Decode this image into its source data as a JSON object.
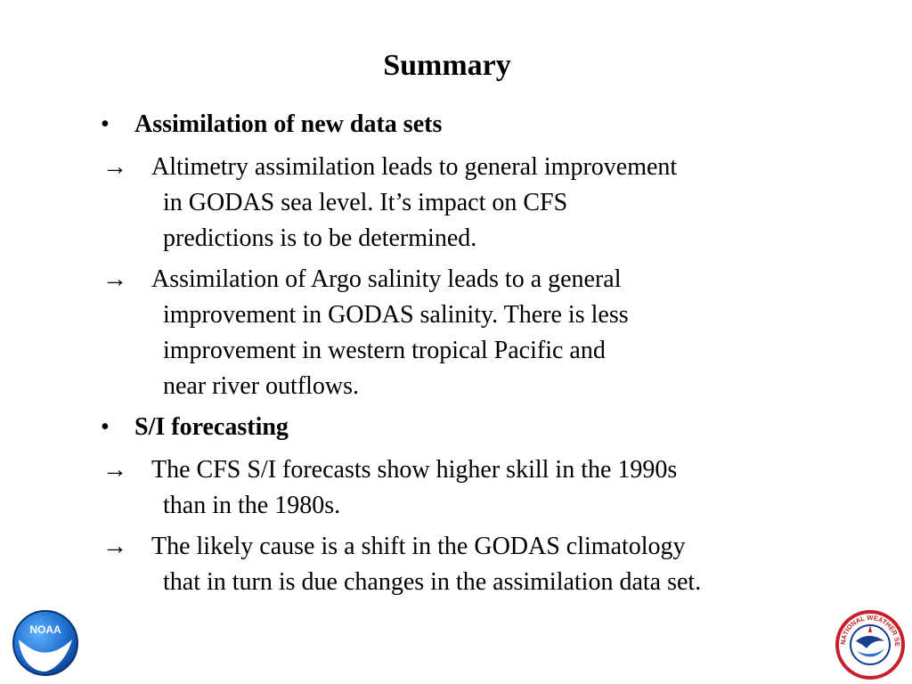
{
  "slide": {
    "title": "Summary"
  },
  "sections": [
    {
      "bullet": "•",
      "heading": "Assimilation of new data sets",
      "items": [
        {
          "marker": "→",
          "lines": [
            "Altimetry assimilation leads to general improvement",
            "in GODAS sea level.  It’s impact on CFS",
            "predictions is to be determined."
          ]
        },
        {
          "marker": "→",
          "lines": [
            "Assimilation of Argo salinity leads to a general",
            "improvement in GODAS salinity.  There is less",
            "improvement in western tropical Pacific and",
            "near river outflows."
          ]
        }
      ]
    },
    {
      "bullet": "•",
      "heading": "S/I forecasting",
      "items": [
        {
          "marker": "→",
          "lines": [
            "The CFS S/I forecasts show higher skill in the 1990s",
            "than in the 1980s."
          ]
        },
        {
          "marker": "→",
          "lines": [
            "The likely cause is a shift in the GODAS climatology",
            "that in turn is due changes in the assimilation data set."
          ]
        }
      ]
    }
  ],
  "logos": {
    "left": {
      "icon": "noaa-logo-icon",
      "text": "NOAA"
    },
    "right": {
      "icon": "nws-logo-icon",
      "text": "NATIONAL WEATHER SERVICE"
    }
  },
  "colors": {
    "text": "#000000",
    "noaa_blue": "#1f5fbf",
    "nws_red": "#c8202a"
  }
}
